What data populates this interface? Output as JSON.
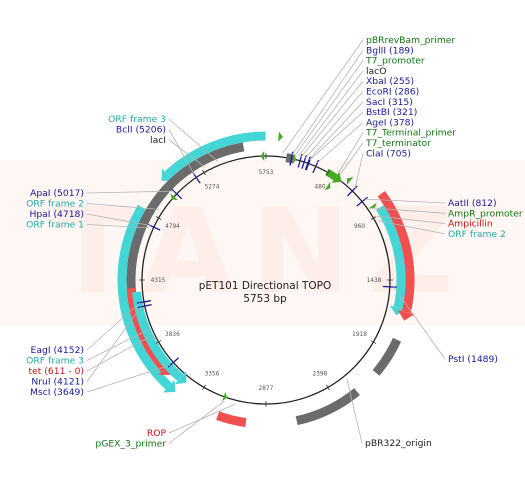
{
  "plasmid": {
    "name": "pET101 Directional TOPO",
    "size_label": "5753 bp",
    "length": 5753
  },
  "watermark": "TANZ",
  "colors": {
    "enzyme": "#1a1a99",
    "orf": "#22aaaa",
    "primer": "#117711",
    "gene": "#cc1111",
    "misc": "#222222",
    "orf_fill": "#44d6d6",
    "gene_fill": "#f05050",
    "misc_fill": "#6b6b6b",
    "green_fill": "#44aa22"
  },
  "ticks": [
    {
      "pos": 0,
      "label": "5753"
    },
    {
      "pos": 480,
      "label": "480"
    },
    {
      "pos": 960,
      "label": "960"
    },
    {
      "pos": 1438,
      "label": "1438"
    },
    {
      "pos": 1918,
      "label": "1918"
    },
    {
      "pos": 2398,
      "label": "2398"
    },
    {
      "pos": 2877,
      "label": "2877"
    },
    {
      "pos": 3356,
      "label": "3356"
    },
    {
      "pos": 3836,
      "label": "3836"
    },
    {
      "pos": 4315,
      "label": "4315"
    },
    {
      "pos": 4794,
      "label": "4794"
    },
    {
      "pos": 5274,
      "label": "5274"
    }
  ],
  "features": [
    {
      "type": "orf",
      "start": 5010,
      "end": 5750,
      "ring": 4,
      "dir": "ccw"
    },
    {
      "type": "misc",
      "start": 3950,
      "end": 5600,
      "ring": 2,
      "dir": "none"
    },
    {
      "type": "orf",
      "start": 3500,
      "end": 4800,
      "ring": 4,
      "dir": "ccw"
    },
    {
      "type": "gene",
      "start": 3600,
      "end": 4260,
      "ring": 2,
      "dir": "ccw"
    },
    {
      "type": "orf",
      "start": 3480,
      "end": 4230,
      "ring": 1,
      "dir": "ccw"
    },
    {
      "type": "orf",
      "start": 920,
      "end": 1680,
      "ring": 2,
      "dir": "cw"
    },
    {
      "type": "gene",
      "start": 850,
      "end": 1700,
      "ring": 4,
      "dir": "cw"
    },
    {
      "type": "misc",
      "start": 1830,
      "end": 2080,
      "ring": 4,
      "dir": "none"
    },
    {
      "type": "misc",
      "start": 2250,
      "end": 2680,
      "ring": 4,
      "dir": "none"
    },
    {
      "type": "gene",
      "start": 3005,
      "end": 3190,
      "ring": 4,
      "dir": "none"
    },
    {
      "type": "misc",
      "start": 150,
      "end": 205,
      "ring": 3,
      "dir": "none"
    },
    {
      "type": "green",
      "start": 470,
      "end": 600,
      "ring": 3,
      "dir": "cw"
    },
    {
      "type": "arrow",
      "start": 205,
      "end": 225,
      "ring": 3,
      "dir": "cw"
    },
    {
      "type": "arrow",
      "start": 530,
      "end": 560,
      "ring": 5,
      "dir": "cw"
    },
    {
      "type": "arrow",
      "start": 615,
      "end": 645,
      "ring": 1,
      "dir": "ccw"
    },
    {
      "type": "arrow",
      "start": 880,
      "end": 905,
      "ring": 1,
      "dir": "cw"
    },
    {
      "type": "arrow",
      "start": 80,
      "end": 108,
      "ring": 4,
      "dir": "cw"
    },
    {
      "type": "arrow",
      "start": 5712,
      "end": 5740,
      "ring": 3,
      "dir": "ccw"
    },
    {
      "type": "arrow",
      "start": 4962,
      "end": 4990,
      "ring": 3,
      "dir": "ccw"
    },
    {
      "type": "arrow",
      "start": 3170,
      "end": 3195,
      "ring": 3,
      "dir": "ccw"
    }
  ],
  "sites": [
    {
      "pos": 189
    },
    {
      "pos": 255
    },
    {
      "pos": 286
    },
    {
      "pos": 315
    },
    {
      "pos": 321
    },
    {
      "pos": 378
    },
    {
      "pos": 705
    },
    {
      "pos": 812
    },
    {
      "pos": 1489
    },
    {
      "pos": 3649
    },
    {
      "pos": 4121
    },
    {
      "pos": 4152
    },
    {
      "pos": 4718
    },
    {
      "pos": 5017
    },
    {
      "pos": 5206
    }
  ],
  "labels": {
    "right_top": [
      {
        "text": "pBRrevBam_primer",
        "type": "primer",
        "pos": 120
      },
      {
        "text": "BglII (189)",
        "type": "enzyme",
        "pos": 189
      },
      {
        "text": "T7_promoter",
        "type": "primer",
        "pos": 210
      },
      {
        "text": "lacO",
        "type": "misc",
        "pos": 235
      },
      {
        "text": "XbaI (255)",
        "type": "enzyme",
        "pos": 255
      },
      {
        "text": "EcoRI (286)",
        "type": "enzyme",
        "pos": 286
      },
      {
        "text": "SacI (315)",
        "type": "enzyme",
        "pos": 315
      },
      {
        "text": "BstBI (321)",
        "type": "enzyme",
        "pos": 321
      },
      {
        "text": "AgeI (378)",
        "type": "enzyme",
        "pos": 378
      },
      {
        "text": "T7_Terminal_primer",
        "type": "primer",
        "pos": 545
      },
      {
        "text": "T7_terminator",
        "type": "primer",
        "pos": 560
      },
      {
        "text": "ClaI (705)",
        "type": "enzyme",
        "pos": 705
      }
    ],
    "right_mid": [
      {
        "text": "AatII (812)",
        "type": "enzyme",
        "pos": 812
      },
      {
        "text": "AmpR_promoter",
        "type": "primer",
        "pos": 890
      },
      {
        "text": "Ampicillin",
        "type": "gene",
        "pos": 960
      },
      {
        "text": "ORF frame 2",
        "type": "orf",
        "pos": 1000
      }
    ],
    "right_low": [
      {
        "text": "PstI (1489)",
        "type": "enzyme",
        "pos": 1489
      }
    ],
    "bottom_right": [
      {
        "text": "pBR322_origin",
        "type": "misc",
        "pos": 2250
      }
    ],
    "bottom_left": [
      {
        "text": "ROP",
        "type": "gene",
        "pos": 3100
      },
      {
        "text": "pGEX_3_primer",
        "type": "primer",
        "pos": 3180
      }
    ],
    "left_low": [
      {
        "text": "EagI (4152)",
        "type": "enzyme",
        "pos": 4152
      },
      {
        "text": "ORF frame 3",
        "type": "orf",
        "pos": 3950
      },
      {
        "text": "tet (611 - 0)",
        "type": "gene",
        "pos": 3900
      },
      {
        "text": "NruI (4121)",
        "type": "enzyme",
        "pos": 4121
      },
      {
        "text": "MscI (3649)",
        "type": "enzyme",
        "pos": 3649
      }
    ],
    "left_mid": [
      {
        "text": "ApaI (5017)",
        "type": "enzyme",
        "pos": 5017
      },
      {
        "text": "ORF frame 2",
        "type": "orf",
        "pos": 4850
      },
      {
        "text": "HpaI (4718)",
        "type": "enzyme",
        "pos": 4718
      },
      {
        "text": "ORF frame 1",
        "type": "orf",
        "pos": 4700
      }
    ],
    "left_top": [
      {
        "text": "ORF frame 3",
        "type": "orf",
        "pos": 5400
      },
      {
        "text": "BclI (5206)",
        "type": "enzyme",
        "pos": 5206
      },
      {
        "text": "lacI",
        "type": "misc",
        "pos": 5300
      }
    ]
  }
}
